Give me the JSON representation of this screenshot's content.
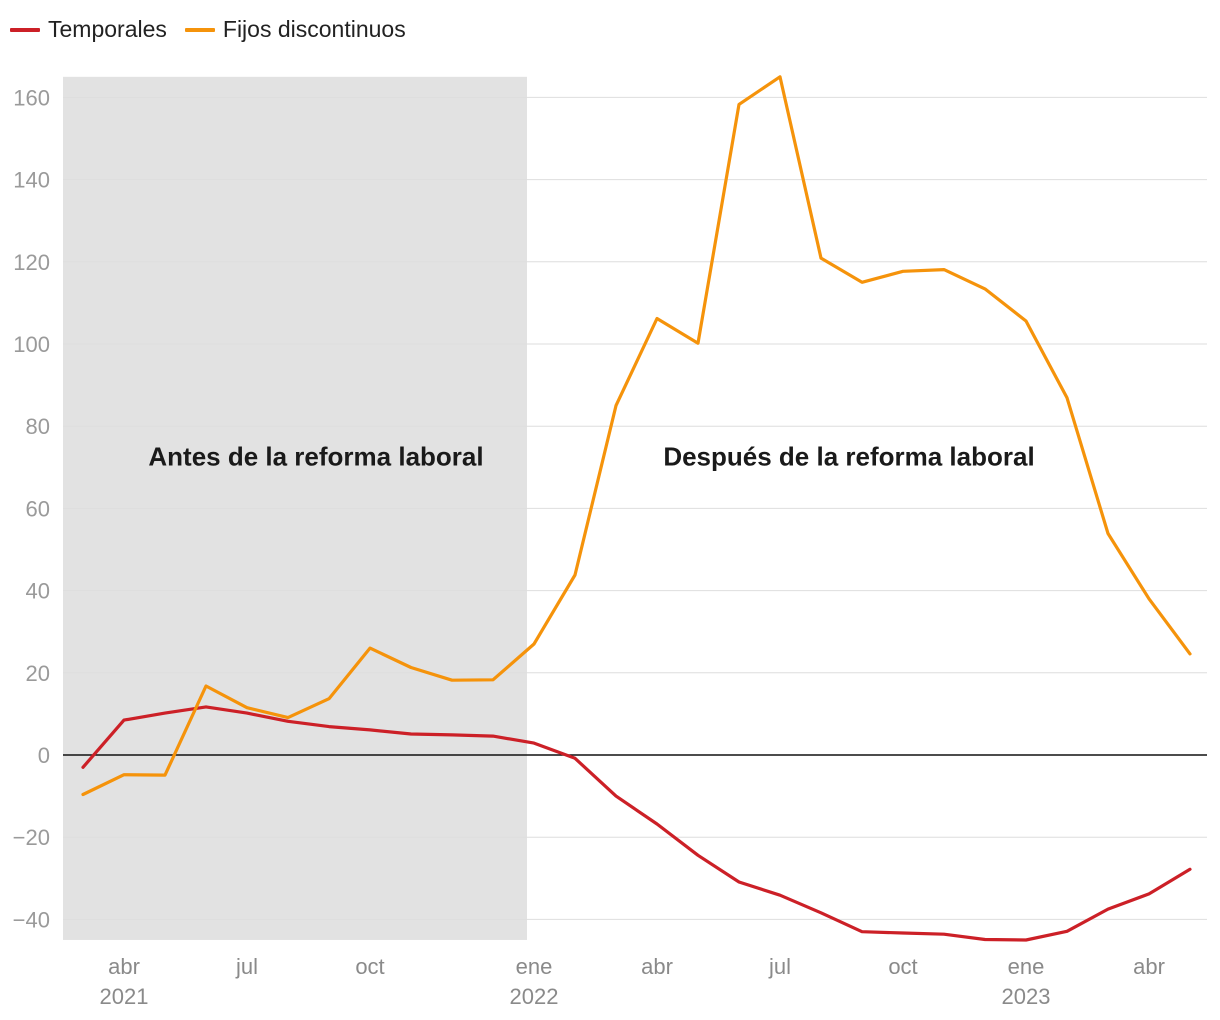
{
  "legend": {
    "items": [
      {
        "label": "Temporales",
        "color": "#cc2027"
      },
      {
        "label": "Fijos discontinuos",
        "color": "#f5930b"
      }
    ]
  },
  "chart_data": {
    "type": "line",
    "x": [
      "2021-02",
      "2021-03",
      "2021-04",
      "2021-05",
      "2021-06",
      "2021-07",
      "2021-08",
      "2021-09",
      "2021-10",
      "2021-11",
      "2021-12",
      "2022-01",
      "2022-02",
      "2022-03",
      "2022-04",
      "2022-05",
      "2022-06",
      "2022-07",
      "2022-08",
      "2022-09",
      "2022-10",
      "2022-11",
      "2022-12",
      "2023-01",
      "2023-02",
      "2023-03",
      "2023-04",
      "2023-05",
      "2023-06"
    ],
    "series": [
      {
        "name": "Temporales",
        "color": "#cc2027",
        "values": [
          -3,
          8.5,
          10.2,
          11.7,
          10.2,
          8.2,
          6.9,
          6.1,
          5.1,
          4.9,
          4.6,
          2.9,
          -0.8,
          -10,
          -16.8,
          -24.4,
          -30.9,
          -34.1,
          -38.4,
          -43,
          -43.3,
          -43.6,
          -44.9,
          -45,
          -42.9,
          -37.5,
          -33.8,
          -27.8,
          null
        ]
      },
      {
        "name": "Fijos discontinuos",
        "color": "#f5930b",
        "values": [
          -9.6,
          -4.8,
          -4.9,
          16.8,
          11.5,
          9.1,
          13.7,
          26,
          21.3,
          18.2,
          18.3,
          27,
          43.8,
          85,
          106.2,
          100.2,
          158.3,
          165,
          120.9,
          115,
          117.7,
          118.1,
          113.4,
          105.6,
          86.9,
          53.9,
          38,
          24.6,
          null
        ]
      }
    ],
    "x_ticks": [
      {
        "label": "abr",
        "year": "2021",
        "x": "2021-03"
      },
      {
        "label": "jul",
        "year": "",
        "x": "2021-06"
      },
      {
        "label": "oct",
        "year": "",
        "x": "2021-09"
      },
      {
        "label": "ene",
        "year": "2022",
        "x": "2022-01"
      },
      {
        "label": "abr",
        "year": "",
        "x": "2022-04"
      },
      {
        "label": "jul",
        "year": "",
        "x": "2022-07"
      },
      {
        "label": "oct",
        "year": "",
        "x": "2022-10"
      },
      {
        "label": "ene",
        "year": "2023",
        "x": "2023-01"
      },
      {
        "label": "abr",
        "year": "",
        "x": "2023-04"
      }
    ],
    "y_ticks": [
      -40,
      -20,
      0,
      20,
      40,
      60,
      80,
      100,
      120,
      140,
      160
    ],
    "ylim": [
      -45,
      165
    ],
    "grid": true,
    "legend_position": "top-left",
    "shaded_period": {
      "from": "2021-02",
      "to": "2022-01",
      "color": "#e2e2e2"
    },
    "annotations": [
      {
        "text": "Antes de la reforma laboral",
        "at_x": "2021-07",
        "at_y": 70
      },
      {
        "text": "Después de la reforma laboral",
        "at_x": "2022-08",
        "at_y": 70
      }
    ],
    "xlabel": "",
    "ylabel": ""
  }
}
